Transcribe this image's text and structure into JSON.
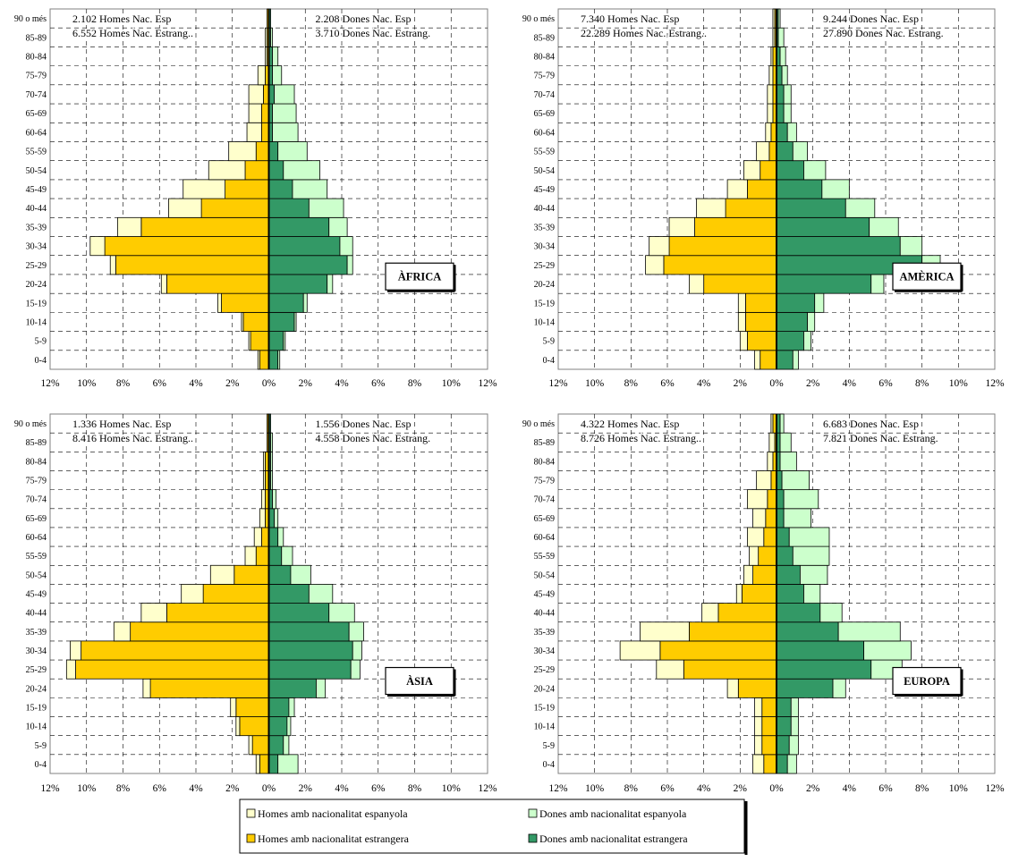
{
  "chart_data": [
    {
      "type": "bar",
      "subtype": "population-pyramid",
      "title": "ÀFRICA",
      "categories": [
        "0-4",
        "5-9",
        "10-14",
        "15-19",
        "20-24",
        "25-29",
        "30-34",
        "35-39",
        "40-44",
        "45-49",
        "50-54",
        "55-59",
        "60-64",
        "65-69",
        "70-74",
        "75-79",
        "80-84",
        "85-89",
        "90 o més"
      ],
      "series": [
        {
          "name": "Homes amb nacionalitat espanyola",
          "side": "left",
          "values": [
            0.1,
            0.1,
            0.1,
            0.2,
            0.3,
            0.3,
            0.8,
            1.3,
            1.8,
            2.3,
            2.0,
            1.5,
            0.8,
            0.7,
            0.8,
            0.4,
            0.1,
            0.1,
            0.0
          ]
        },
        {
          "name": "Homes amb nacionalitat estrangera",
          "side": "left",
          "values": [
            0.5,
            1.0,
            1.4,
            2.6,
            5.6,
            8.4,
            9.0,
            7.0,
            3.7,
            2.4,
            1.3,
            0.7,
            0.4,
            0.4,
            0.3,
            0.2,
            0.1,
            0.1,
            0.1
          ]
        },
        {
          "name": "Dones amb nacionalitat espanyola",
          "side": "right",
          "values": [
            0.1,
            0.1,
            0.1,
            0.2,
            0.3,
            0.3,
            0.7,
            1.0,
            1.9,
            1.9,
            2.0,
            1.6,
            1.4,
            1.3,
            1.1,
            0.5,
            0.3,
            0.1,
            0.0
          ]
        },
        {
          "name": "Dones amb nacionalitat estrangera",
          "side": "right",
          "values": [
            0.5,
            0.8,
            1.4,
            1.9,
            3.2,
            4.3,
            3.9,
            3.3,
            2.2,
            1.3,
            0.8,
            0.5,
            0.2,
            0.2,
            0.3,
            0.2,
            0.2,
            0.1,
            0.1
          ]
        }
      ],
      "annotations": {
        "male_line1": "2.102 Homes Nac. Esp",
        "male_line2": "6.552 Homes Nac. Estrang..",
        "female_line1": "2.208 Dones Nac. Esp",
        "female_line2": "3.710 Dones Nac. Estrang."
      },
      "xlim": [
        -12,
        12
      ],
      "x_tick_labels": [
        "12%",
        "10%",
        "8%",
        "6%",
        "4%",
        "2%",
        "0%",
        "2%",
        "4%",
        "6%",
        "8%",
        "10%",
        "12%"
      ],
      "grid": true
    },
    {
      "type": "bar",
      "subtype": "population-pyramid",
      "title": "AMÈRICA",
      "categories": [
        "0-4",
        "5-9",
        "10-14",
        "15-19",
        "20-24",
        "25-29",
        "30-34",
        "35-39",
        "40-44",
        "45-49",
        "50-54",
        "55-59",
        "60-64",
        "65-69",
        "70-74",
        "75-79",
        "80-84",
        "85-89",
        "90 o més"
      ],
      "series": [
        {
          "name": "Homes amb nacionalitat espanyola",
          "side": "left",
          "values": [
            0.3,
            0.4,
            0.4,
            0.4,
            0.8,
            1.0,
            1.1,
            1.4,
            1.6,
            1.1,
            0.9,
            0.7,
            0.3,
            0.3,
            0.3,
            0.2,
            0.1,
            0.1,
            0.1
          ]
        },
        {
          "name": "Homes amb nacionalitat estrangera",
          "side": "left",
          "values": [
            0.9,
            1.6,
            1.7,
            1.7,
            4.0,
            6.2,
            5.9,
            4.5,
            2.8,
            1.6,
            0.9,
            0.4,
            0.3,
            0.2,
            0.2,
            0.2,
            0.2,
            0.1,
            0.1
          ]
        },
        {
          "name": "Dones amb nacionalitat espanyola",
          "side": "right",
          "values": [
            0.3,
            0.4,
            0.4,
            0.5,
            0.7,
            1.0,
            1.2,
            1.6,
            1.6,
            1.5,
            1.2,
            0.8,
            0.5,
            0.4,
            0.4,
            0.3,
            0.3,
            0.3,
            0.1
          ]
        },
        {
          "name": "Dones amb nacionalitat estrangera",
          "side": "right",
          "values": [
            0.9,
            1.5,
            1.7,
            2.1,
            5.2,
            8.0,
            6.8,
            5.1,
            3.8,
            2.5,
            1.5,
            0.9,
            0.6,
            0.4,
            0.4,
            0.3,
            0.2,
            0.1,
            0.1
          ]
        }
      ],
      "annotations": {
        "male_line1": "7.340 Homes Nac. Esp",
        "male_line2": "22.289 Homes Nac. Estrang..",
        "female_line1": "9.244 Dones Nac. Esp",
        "female_line2": "27.890 Dones Nac. Estrang."
      },
      "xlim": [
        -12,
        12
      ],
      "x_tick_labels": [
        "12%",
        "10%",
        "8%",
        "6%",
        "4%",
        "2%",
        "0%",
        "2%",
        "4%",
        "6%",
        "8%",
        "10%",
        "12%"
      ],
      "grid": true
    },
    {
      "type": "bar",
      "subtype": "population-pyramid",
      "title": "ÀSIA",
      "categories": [
        "0-4",
        "5-9",
        "10-14",
        "15-19",
        "20-24",
        "25-29",
        "30-34",
        "35-39",
        "40-44",
        "45-49",
        "50-54",
        "55-59",
        "60-64",
        "65-69",
        "70-74",
        "75-79",
        "80-84",
        "85-89",
        "90 o més"
      ],
      "series": [
        {
          "name": "Homes amb nacionalitat espanyola",
          "side": "left",
          "values": [
            0.2,
            0.2,
            0.2,
            0.3,
            0.4,
            0.5,
            0.6,
            0.9,
            1.4,
            1.2,
            1.3,
            0.6,
            0.4,
            0.3,
            0.2,
            0.1,
            0.1,
            0.0,
            0.0
          ]
        },
        {
          "name": "Homes amb nacionalitat estrangera",
          "side": "left",
          "values": [
            0.5,
            0.9,
            1.6,
            1.8,
            6.5,
            10.6,
            10.3,
            7.6,
            5.6,
            3.6,
            1.9,
            0.7,
            0.4,
            0.2,
            0.2,
            0.2,
            0.2,
            0.1,
            0.1
          ]
        },
        {
          "name": "Dones amb nacionalitat espanyola",
          "side": "right",
          "values": [
            1.1,
            0.3,
            0.2,
            0.3,
            0.5,
            0.5,
            0.5,
            0.8,
            1.4,
            1.3,
            1.1,
            0.6,
            0.3,
            0.2,
            0.2,
            0.1,
            0.1,
            0.1,
            0.0
          ]
        },
        {
          "name": "Dones amb nacionalitat estrangera",
          "side": "right",
          "values": [
            0.5,
            0.8,
            1.0,
            1.1,
            2.6,
            4.5,
            4.6,
            4.4,
            3.3,
            2.2,
            1.2,
            0.7,
            0.5,
            0.3,
            0.2,
            0.1,
            0.1,
            0.1,
            0.1
          ]
        }
      ],
      "annotations": {
        "male_line1": "1.336 Homes Nac. Esp",
        "male_line2": "8.416 Homes Nac. Estrang..",
        "female_line1": "1.556 Dones Nac. Esp",
        "female_line2": "4.558 Dones Nac. Estrang."
      },
      "xlim": [
        -12,
        12
      ],
      "x_tick_labels": [
        "12%",
        "10%",
        "8%",
        "6%",
        "4%",
        "2%",
        "0%",
        "2%",
        "4%",
        "6%",
        "8%",
        "10%",
        "12%"
      ],
      "grid": true
    },
    {
      "type": "bar",
      "subtype": "population-pyramid",
      "title": "EUROPA",
      "categories": [
        "0-4",
        "5-9",
        "10-14",
        "15-19",
        "20-24",
        "25-29",
        "30-34",
        "35-39",
        "40-44",
        "45-49",
        "50-54",
        "55-59",
        "60-64",
        "65-69",
        "70-74",
        "75-79",
        "80-84",
        "85-89",
        "90 o més"
      ],
      "series": [
        {
          "name": "Homes amb nacionalitat espanyola",
          "side": "left",
          "values": [
            0.6,
            0.4,
            0.4,
            0.4,
            0.6,
            1.5,
            2.2,
            2.7,
            0.9,
            0.3,
            0.5,
            0.5,
            0.9,
            0.7,
            1.1,
            0.8,
            0.3,
            0.3,
            0.1
          ]
        },
        {
          "name": "Homes amb nacionalitat estrangera",
          "side": "left",
          "values": [
            0.7,
            0.8,
            0.8,
            0.8,
            2.1,
            5.1,
            6.4,
            4.8,
            3.2,
            1.9,
            1.3,
            1.0,
            0.7,
            0.6,
            0.5,
            0.3,
            0.2,
            0.1,
            0.2
          ]
        },
        {
          "name": "Dones amb nacionalitat espanyola",
          "side": "right",
          "values": [
            0.5,
            0.5,
            0.4,
            0.4,
            0.7,
            1.7,
            2.6,
            3.4,
            1.2,
            0.9,
            1.5,
            2.0,
            2.2,
            1.5,
            1.9,
            1.5,
            0.9,
            0.6,
            0.2
          ]
        },
        {
          "name": "Dones amb nacionalitat estrangera",
          "side": "right",
          "values": [
            0.6,
            0.7,
            0.8,
            0.8,
            3.1,
            5.2,
            4.8,
            3.4,
            2.4,
            1.5,
            1.3,
            0.9,
            0.7,
            0.4,
            0.4,
            0.3,
            0.2,
            0.2,
            0.2
          ]
        }
      ],
      "annotations": {
        "male_line1": "4.322 Homes Nac. Esp",
        "male_line2": "8.726 Homes Nac. Estrang..",
        "female_line1": "6.683 Dones Nac. Esp",
        "female_line2": "7.821 Dones Nac. Estrang."
      },
      "xlim": [
        -12,
        12
      ],
      "x_tick_labels": [
        "12%",
        "10%",
        "8%",
        "6%",
        "4%",
        "2%",
        "0%",
        "2%",
        "4%",
        "6%",
        "8%",
        "10%",
        "12%"
      ],
      "grid": true
    }
  ],
  "legend": {
    "items": [
      {
        "label": "Homes amb nacionalitat espanyola",
        "color": "#FFFFCC"
      },
      {
        "label": "Dones amb nacionalitat espanyola",
        "color": "#CCFFCC"
      },
      {
        "label": "Homes amb nacionalitat estrangera",
        "color": "#FFCC00"
      },
      {
        "label": "Dones amb nacionalitat estrangera",
        "color": "#339966"
      }
    ]
  },
  "colors": {
    "male_esp": "#FFFFCC",
    "male_est": "#FFCC00",
    "female_esp": "#CCFFCC",
    "female_est": "#339966"
  }
}
